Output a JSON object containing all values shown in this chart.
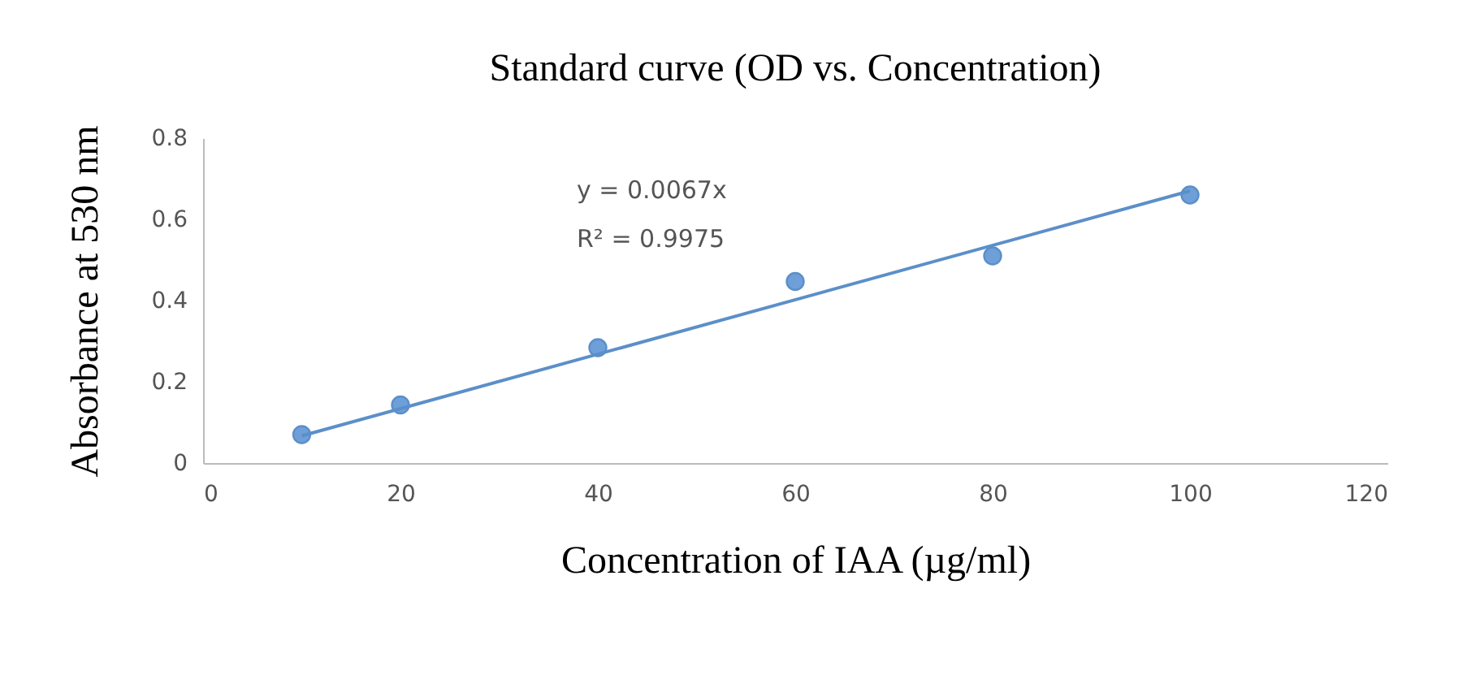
{
  "chart_data": {
    "type": "scatter",
    "title": "Standard curve (OD vs. Concentration)",
    "xlabel": "Concentration of IAA (µg/ml)",
    "ylabel": "Absorbance at 530 nm",
    "x": [
      10,
      20,
      40,
      60,
      80,
      100
    ],
    "series": [
      {
        "color": "#6f9fd8",
        "marker": "circle",
        "values": [
          0.07,
          0.143,
          0.284,
          0.447,
          0.51,
          0.66
        ]
      },
      {
        "type": "line",
        "color": "#5b8fc9",
        "marker": "none",
        "x": [
          10,
          100
        ],
        "values": [
          0.067,
          0.67
        ]
      }
    ],
    "annotations": [
      "y = 0.0067x",
      "R² = 0.9975"
    ],
    "xlim": [
      0,
      120
    ],
    "xticks": [
      0,
      20,
      40,
      60,
      80,
      100,
      120
    ],
    "ylim": [
      0,
      0.8
    ],
    "yticks": [
      0,
      0.2,
      0.4,
      0.6,
      0.8
    ],
    "grid": false
  }
}
